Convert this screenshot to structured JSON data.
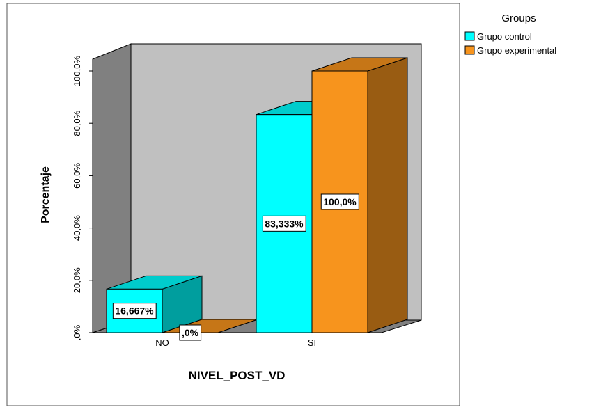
{
  "chart_data": {
    "type": "bar3d",
    "x_label": "NIVEL_POST_VD",
    "y_label": "Porcentaje",
    "legend_title": "Groups",
    "categories": [
      "NO",
      "SI"
    ],
    "series": [
      {
        "name": "Grupo control",
        "color": "#00ffff",
        "values": [
          16.667,
          83.333
        ],
        "value_labels": [
          "16,667%",
          "83,333%"
        ]
      },
      {
        "name": "Grupo experimental",
        "color": "#f7941d",
        "values": [
          0,
          100
        ],
        "value_labels": [
          ",0%",
          "100,0%"
        ]
      }
    ],
    "ylim": [
      0,
      100
    ],
    "yticks": [
      {
        "value": 0,
        "label": ",0%"
      },
      {
        "value": 20,
        "label": "20,0%"
      },
      {
        "value": 40,
        "label": "40,0%"
      },
      {
        "value": 60,
        "label": "60,0%"
      },
      {
        "value": 80,
        "label": "80,0%"
      },
      {
        "value": 100,
        "label": "100,0%"
      }
    ],
    "legend_position": "top-right"
  }
}
